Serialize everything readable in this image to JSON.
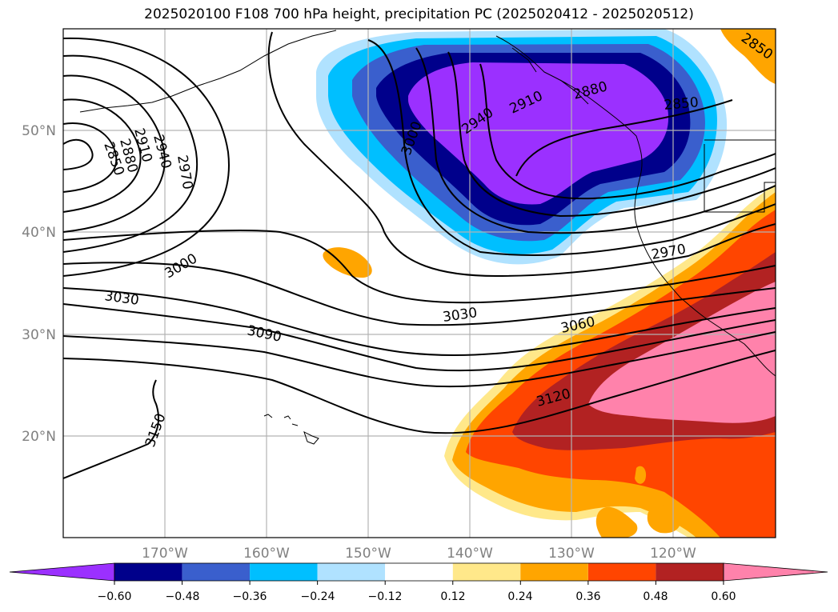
{
  "title": "2025020100 F108 700 hPa height, precipitation PC (2025020412 - 2025020512)",
  "map": {
    "lat_labels": [
      "50°N",
      "40°N",
      "30°N",
      "20°N"
    ],
    "lon_labels": [
      "170°W",
      "160°W",
      "150°W",
      "140°W",
      "130°W",
      "120°W"
    ],
    "contour_labels": [
      "2850",
      "2880",
      "2910",
      "2940",
      "2970",
      "3000",
      "3030",
      "3060",
      "3090",
      "3120",
      "3150"
    ],
    "colors": {
      "neg_060_plus": "#9b30ff",
      "neg_048": "#00008b",
      "neg_036": "#3a5fcd",
      "neg_024": "#00bfff",
      "neg_012": "#b0e2ff",
      "neutral": "#ffffff",
      "pos_012": "#ffe88a",
      "pos_024": "#ffa500",
      "pos_036": "#ff4500",
      "pos_048": "#b22222",
      "pos_060_plus": "#ff82ab"
    }
  },
  "colorbar": {
    "ticks": [
      "−0.60",
      "−0.48",
      "−0.36",
      "−0.24",
      "−0.12",
      "0.12",
      "0.24",
      "0.36",
      "0.48",
      "0.60"
    ],
    "colors": [
      "#9b30ff",
      "#00008b",
      "#3a5fcd",
      "#00bfff",
      "#b0e2ff",
      "#ffffff",
      "#ffe88a",
      "#ffa500",
      "#ff4500",
      "#b22222",
      "#ff82ab"
    ]
  }
}
